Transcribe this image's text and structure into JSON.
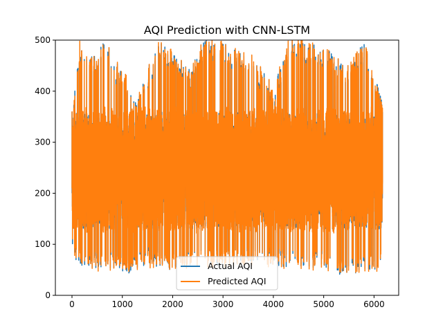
{
  "chart_data": {
    "type": "line",
    "title": "AQI Prediction with CNN-LSTM",
    "xlabel": "",
    "ylabel": "",
    "xlim": [
      -330,
      6490
    ],
    "ylim": [
      0,
      500
    ],
    "x_ticks": [
      0,
      1000,
      2000,
      3000,
      4000,
      5000,
      6000
    ],
    "y_ticks": [
      0,
      100,
      200,
      300,
      400,
      500
    ],
    "x_tick_labels": [
      "0",
      "1000",
      "2000",
      "3000",
      "4000",
      "5000",
      "6000"
    ],
    "y_tick_labels": [
      "0",
      "100",
      "200",
      "300",
      "400",
      "500"
    ],
    "grid": false,
    "legend_position": "lower center",
    "n_points": 6170,
    "series": [
      {
        "name": "Actual AQI",
        "color": "#1f77b4",
        "summary": {
          "x_range": [
            0,
            6170
          ],
          "typical_min": 55,
          "typical_max": 500,
          "observed_min": 37,
          "observed_max": 500,
          "typical_band": [
            120,
            370
          ],
          "envelope_high": [
            [
              0,
              360
            ],
            [
              150,
              500
            ],
            [
              200,
              480
            ],
            [
              350,
              470
            ],
            [
              450,
              470
            ],
            [
              650,
              500
            ],
            [
              1000,
              440
            ],
            [
              1350,
              400
            ],
            [
              1700,
              500
            ],
            [
              2000,
              480
            ],
            [
              2350,
              440
            ],
            [
              2600,
              500
            ],
            [
              3000,
              500
            ],
            [
              3300,
              480
            ],
            [
              3600,
              470
            ],
            [
              4000,
              410
            ],
            [
              4300,
              500
            ],
            [
              4700,
              500
            ],
            [
              5100,
              480
            ],
            [
              5500,
              450
            ],
            [
              5800,
              500
            ],
            [
              6170,
              380
            ]
          ],
          "envelope_low": [
            [
              0,
              90
            ],
            [
              100,
              60
            ],
            [
              300,
              55
            ],
            [
              600,
              52
            ],
            [
              900,
              55
            ],
            [
              1050,
              40
            ],
            [
              1500,
              60
            ],
            [
              1900,
              50
            ],
            [
              2300,
              55
            ],
            [
              2700,
              60
            ],
            [
              3100,
              60
            ],
            [
              3500,
              60
            ],
            [
              3900,
              60
            ],
            [
              4300,
              55
            ],
            [
              4700,
              55
            ],
            [
              5100,
              50
            ],
            [
              5400,
              37
            ],
            [
              5700,
              45
            ],
            [
              6000,
              48
            ],
            [
              6100,
              42
            ],
            [
              6170,
              110
            ]
          ]
        }
      },
      {
        "name": "Predicted AQI",
        "color": "#ff7f0e",
        "summary": {
          "x_range": [
            0,
            6170
          ],
          "typical_min": 50,
          "typical_max": 500,
          "observed_min": 42,
          "observed_max": 500,
          "typical_band": [
            120,
            370
          ],
          "envelope_high": [
            [
              0,
              360
            ],
            [
              150,
              500
            ],
            [
              200,
              480
            ],
            [
              350,
              470
            ],
            [
              450,
              470
            ],
            [
              650,
              500
            ],
            [
              1000,
              440
            ],
            [
              1350,
              400
            ],
            [
              1700,
              500
            ],
            [
              2000,
              480
            ],
            [
              2350,
              440
            ],
            [
              2600,
              500
            ],
            [
              3000,
              500
            ],
            [
              3300,
              480
            ],
            [
              3600,
              470
            ],
            [
              4000,
              410
            ],
            [
              4300,
              500
            ],
            [
              4700,
              500
            ],
            [
              5100,
              480
            ],
            [
              5500,
              450
            ],
            [
              5800,
              500
            ],
            [
              6170,
              370
            ]
          ],
          "envelope_low": [
            [
              0,
              90
            ],
            [
              100,
              50
            ],
            [
              300,
              48
            ],
            [
              600,
              45
            ],
            [
              900,
              50
            ],
            [
              1050,
              45
            ],
            [
              1500,
              55
            ],
            [
              1900,
              45
            ],
            [
              2300,
              50
            ],
            [
              2700,
              55
            ],
            [
              3100,
              55
            ],
            [
              3500,
              55
            ],
            [
              3900,
              55
            ],
            [
              4300,
              52
            ],
            [
              4700,
              50
            ],
            [
              5100,
              48
            ],
            [
              5400,
              45
            ],
            [
              5700,
              45
            ],
            [
              6000,
              45
            ],
            [
              6100,
              42
            ],
            [
              6170,
              120
            ]
          ]
        }
      }
    ]
  }
}
